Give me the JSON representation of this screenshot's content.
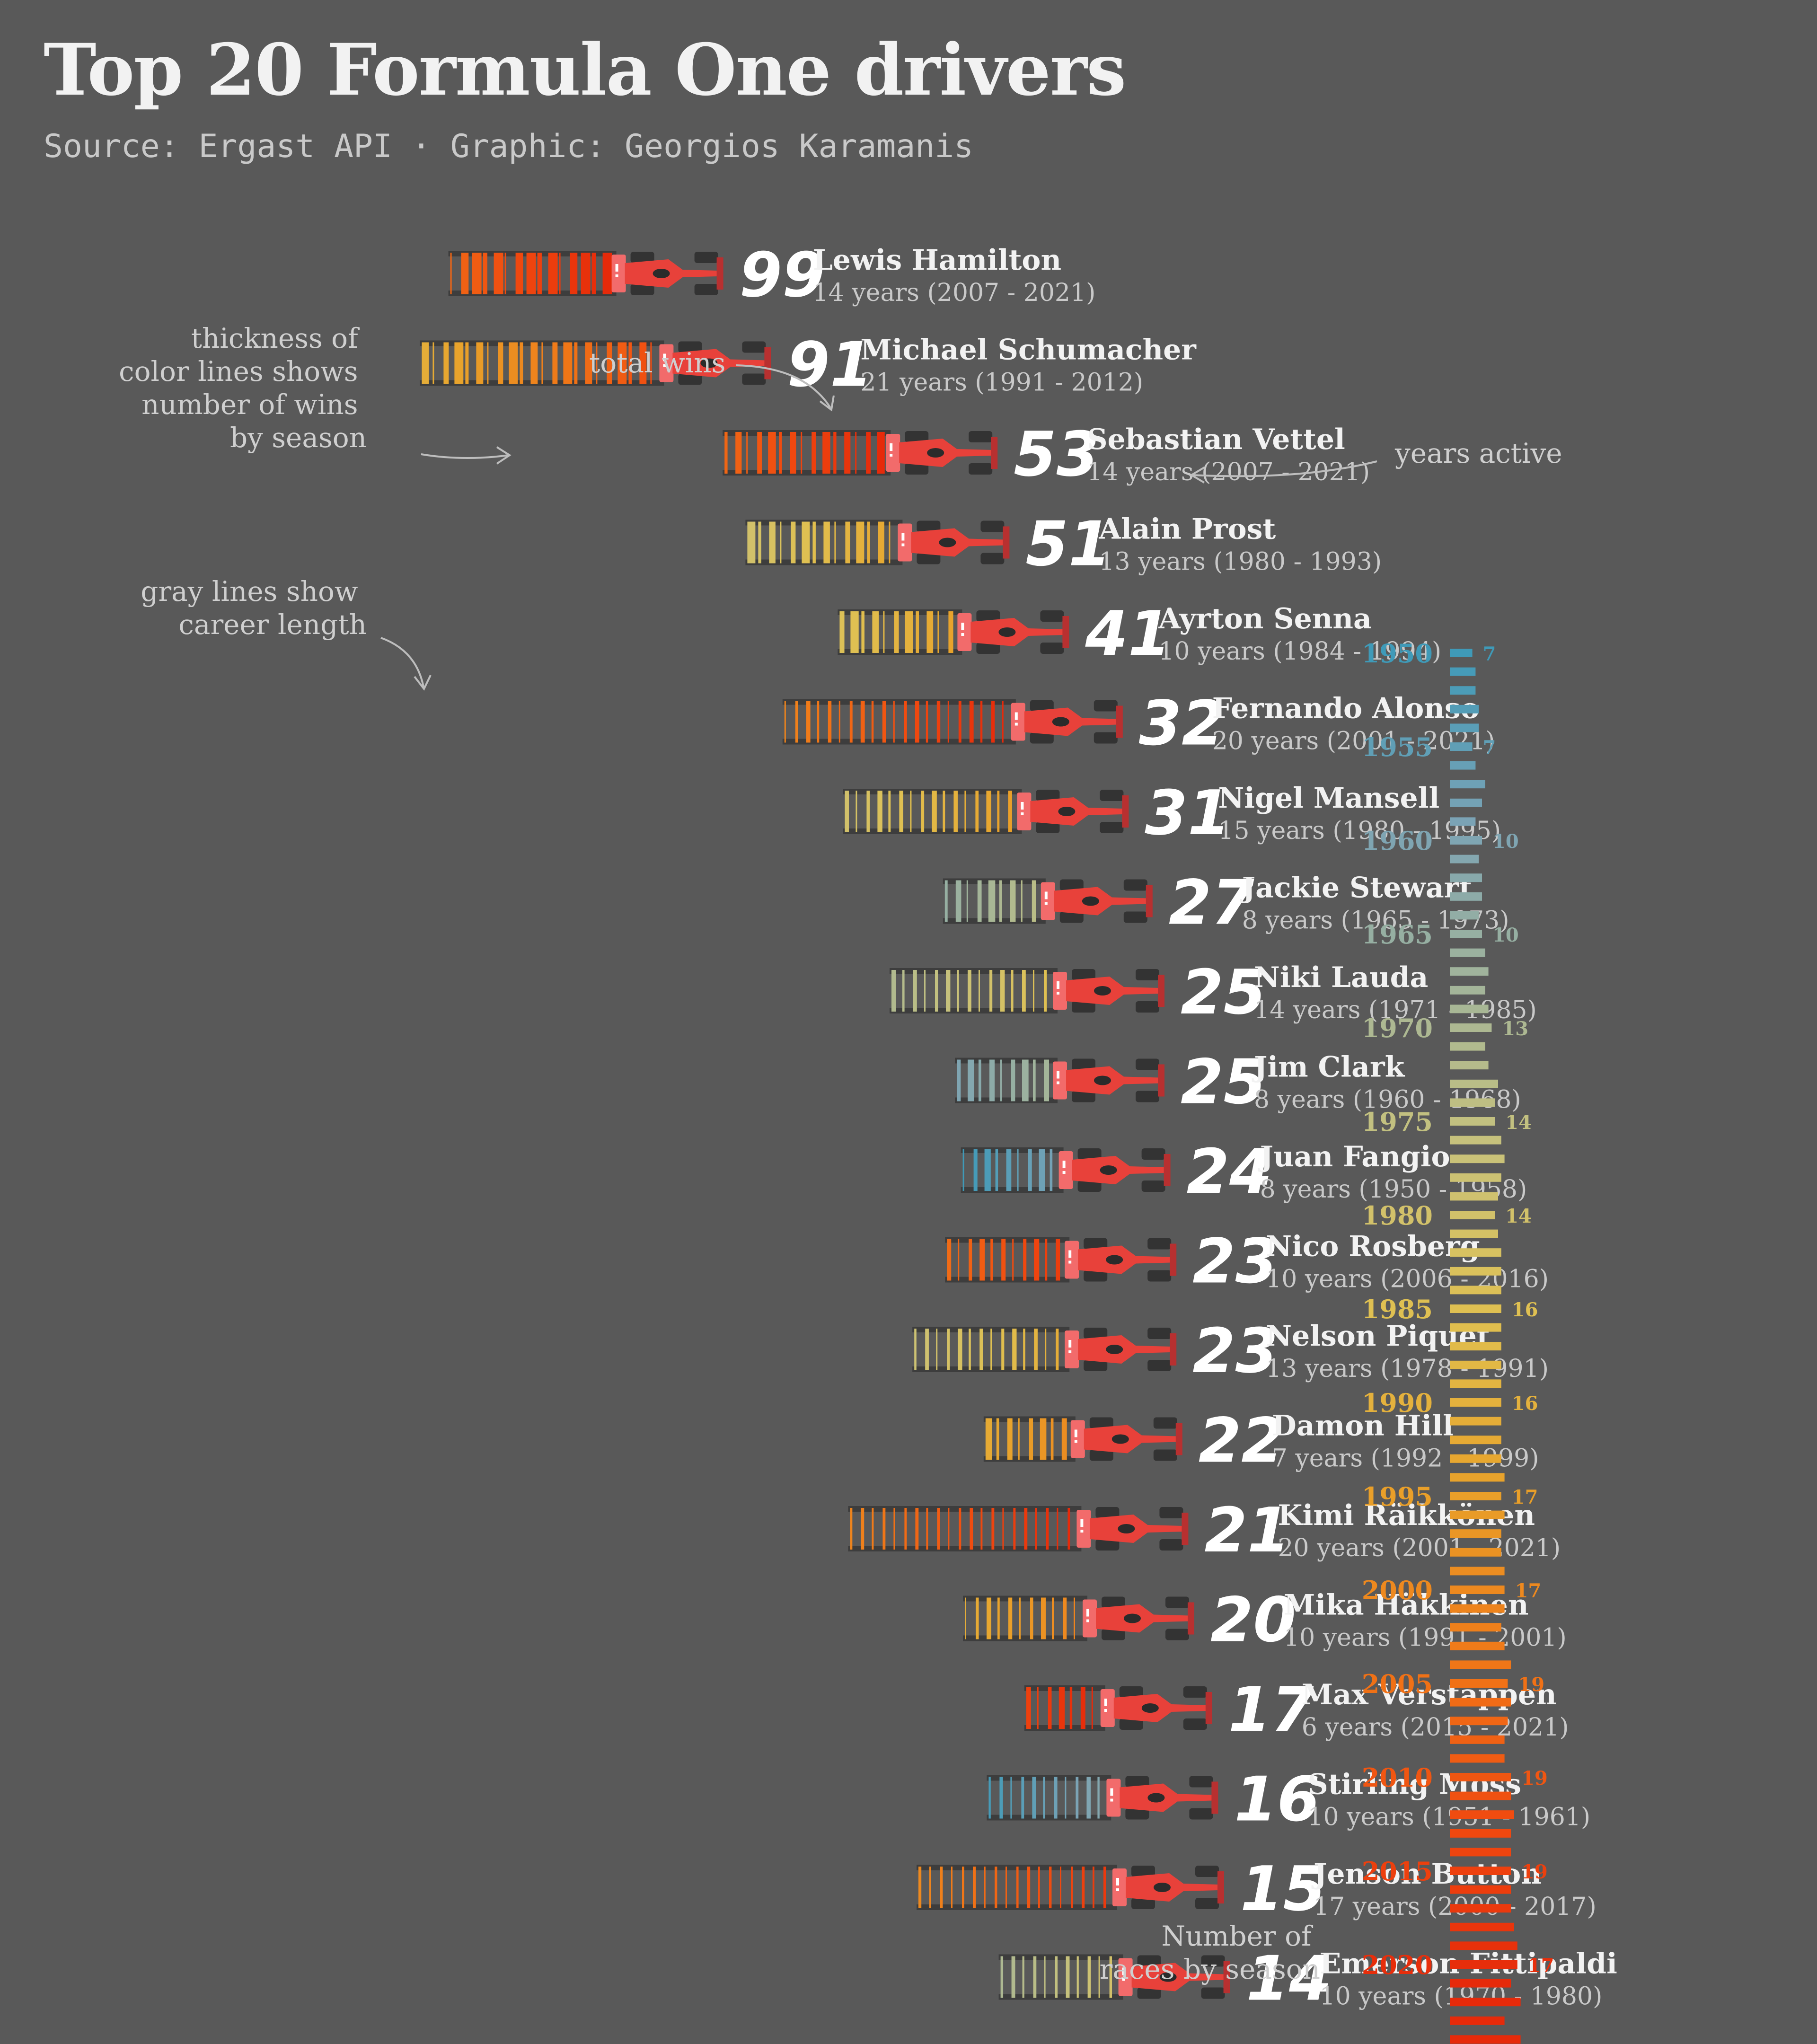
{
  "header": {
    "title": "Top 20 Formula One drivers",
    "subtitle": "Source: Ergast API · Graphic: Georgios Karamanis"
  },
  "annotations": {
    "thickness": [
      "thickness of",
      "color lines shows",
      "number of wins",
      "by season"
    ],
    "total_wins": "total wins",
    "years_active": "years active",
    "gray_lines": [
      "gray lines show",
      "career length"
    ],
    "races_by_season": [
      "Number of",
      "races by season"
    ]
  },
  "colors": {
    "background": "#595959",
    "car": "#e8413a",
    "car_nose": "#f26b6b",
    "wheels": "#333333",
    "career_line": "#3d3d3d",
    "scale": [
      "#3f9ab8",
      "#7aa3b5",
      "#a3b59a",
      "#c9c27a",
      "#e0c050",
      "#e8a22a",
      "#f07a18",
      "#f04b10",
      "#e62a0a"
    ]
  },
  "chart_data": [
    {
      "type": "bar",
      "description_of_encoding": "",
      "series_name": "Total wins",
      "drivers": [
        {
          "name": "Lewis Hamilton",
          "wins": 99,
          "years_text": "14 years (2007 - 2021)",
          "start": 2007,
          "end": 2021
        },
        {
          "name": "Michael Schumacher",
          "wins": 91,
          "years_text": "21 years (1991 - 2012)",
          "start": 1991,
          "end": 2012
        },
        {
          "name": "Sebastian Vettel",
          "wins": 53,
          "years_text": "14 years (2007 - 2021)",
          "start": 2007,
          "end": 2021
        },
        {
          "name": "Alain Prost",
          "wins": 51,
          "years_text": "13 years (1980 - 1993)",
          "start": 1980,
          "end": 1993
        },
        {
          "name": "Ayrton Senna",
          "wins": 41,
          "years_text": "10 years (1984 - 1994)",
          "start": 1984,
          "end": 1994
        },
        {
          "name": "Fernando Alonso",
          "wins": 32,
          "years_text": "20 years (2001 - 2021)",
          "start": 2001,
          "end": 2021
        },
        {
          "name": "Nigel Mansell",
          "wins": 31,
          "years_text": "15 years (1980 - 1995)",
          "start": 1980,
          "end": 1995
        },
        {
          "name": "Jackie Stewart",
          "wins": 27,
          "years_text": "8 years (1965 - 1973)",
          "start": 1965,
          "end": 1973
        },
        {
          "name": "Niki Lauda",
          "wins": 25,
          "years_text": "14 years (1971 - 1985)",
          "start": 1971,
          "end": 1985
        },
        {
          "name": "Jim Clark",
          "wins": 25,
          "years_text": "8 years (1960 - 1968)",
          "start": 1960,
          "end": 1968
        },
        {
          "name": "Juan Fangio",
          "wins": 24,
          "years_text": "8 years (1950 - 1958)",
          "start": 1950,
          "end": 1958
        },
        {
          "name": "Nico Rosberg",
          "wins": 23,
          "years_text": "10 years (2006 - 2016)",
          "start": 2006,
          "end": 2016
        },
        {
          "name": "Nelson Piquet",
          "wins": 23,
          "years_text": "13 years (1978 - 1991)",
          "start": 1978,
          "end": 1991
        },
        {
          "name": "Damon Hill",
          "wins": 22,
          "years_text": "7 years (1992 - 1999)",
          "start": 1992,
          "end": 1999
        },
        {
          "name": "Kimi Räikkönen",
          "wins": 21,
          "years_text": "20 years (2001 - 2021)",
          "start": 2001,
          "end": 2021
        },
        {
          "name": "Mika Häkkinen",
          "wins": 20,
          "years_text": "10 years (1991 - 2001)",
          "start": 1991,
          "end": 2001
        },
        {
          "name": "Max Verstappen",
          "wins": 17,
          "years_text": "6 years (2015 - 2021)",
          "start": 2015,
          "end": 2021
        },
        {
          "name": "Stirling Moss",
          "wins": 16,
          "years_text": "10 years (1951 - 1961)",
          "start": 1951,
          "end": 1961
        },
        {
          "name": "Jenson Button",
          "wins": 15,
          "years_text": "17 years (2000 - 2017)",
          "start": 2000,
          "end": 2017
        },
        {
          "name": "Emerson Fittipaldi",
          "wins": 14,
          "years_text": "10 years (1970 - 1980)",
          "start": 1970,
          "end": 1980
        }
      ]
    },
    {
      "type": "bar",
      "title": "Number of races by season",
      "year_labels": [
        1950,
        1955,
        1960,
        1965,
        1970,
        1975,
        1980,
        1985,
        1990,
        1995,
        2000,
        2005,
        2010,
        2015,
        2020
      ],
      "races": [
        7,
        8,
        8,
        9,
        9,
        7,
        8,
        11,
        10,
        8,
        10,
        9,
        10,
        10,
        9,
        10,
        11,
        12,
        11,
        12,
        13,
        11,
        12,
        15,
        14,
        14,
        16,
        17,
        16,
        15,
        14,
        15,
        16,
        16,
        16,
        16,
        16,
        16,
        16,
        16,
        16,
        16,
        16,
        16,
        17,
        16,
        17,
        16,
        16,
        17,
        17,
        17,
        16,
        17,
        19,
        18,
        19,
        18,
        17,
        17,
        19,
        19,
        20,
        19,
        19,
        19,
        19,
        19,
        20,
        21,
        21,
        19,
        22,
        17,
        22
      ],
      "labeled_races": [
        7,
        7,
        10,
        10,
        13,
        14,
        14,
        16,
        16,
        17,
        17,
        19,
        19,
        19,
        17
      ]
    }
  ]
}
